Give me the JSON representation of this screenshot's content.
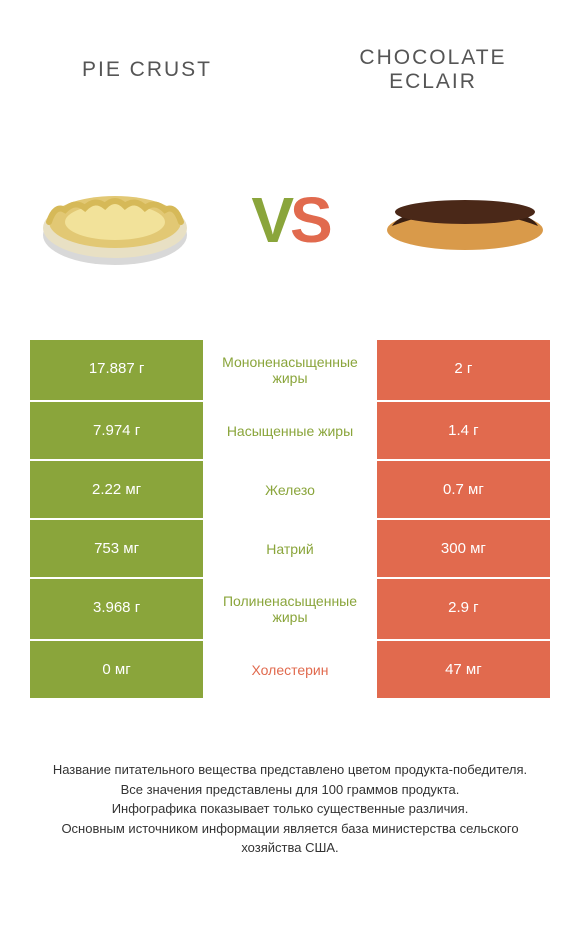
{
  "colors": {
    "green": "#8aa53b",
    "orange": "#e16a4e",
    "text": "#555555"
  },
  "title_left": "PIE CRUST",
  "title_right": "CHOCOLATE ECLAIR",
  "vs": {
    "v": "V",
    "s": "S"
  },
  "rows": [
    {
      "left": "17.887 г",
      "mid": "Мононенасыщенные жиры",
      "right": "2 г",
      "winner": "left"
    },
    {
      "left": "7.974 г",
      "mid": "Насыщенные жиры",
      "right": "1.4 г",
      "winner": "left"
    },
    {
      "left": "2.22 мг",
      "mid": "Железо",
      "right": "0.7 мг",
      "winner": "left"
    },
    {
      "left": "753 мг",
      "mid": "Натрий",
      "right": "300 мг",
      "winner": "left"
    },
    {
      "left": "3.968 г",
      "mid": "Полиненасыщенные жиры",
      "right": "2.9 г",
      "winner": "left"
    },
    {
      "left": "0 мг",
      "mid": "Холестерин",
      "right": "47 мг",
      "winner": "right"
    }
  ],
  "footer": [
    "Название питательного вещества представлено цветом продукта-победителя.",
    "Все значения представлены для 100 граммов продукта.",
    "Инфографика показывает только существенные различия.",
    "Основным источником информации является база министерства сельского хозяйства США."
  ]
}
